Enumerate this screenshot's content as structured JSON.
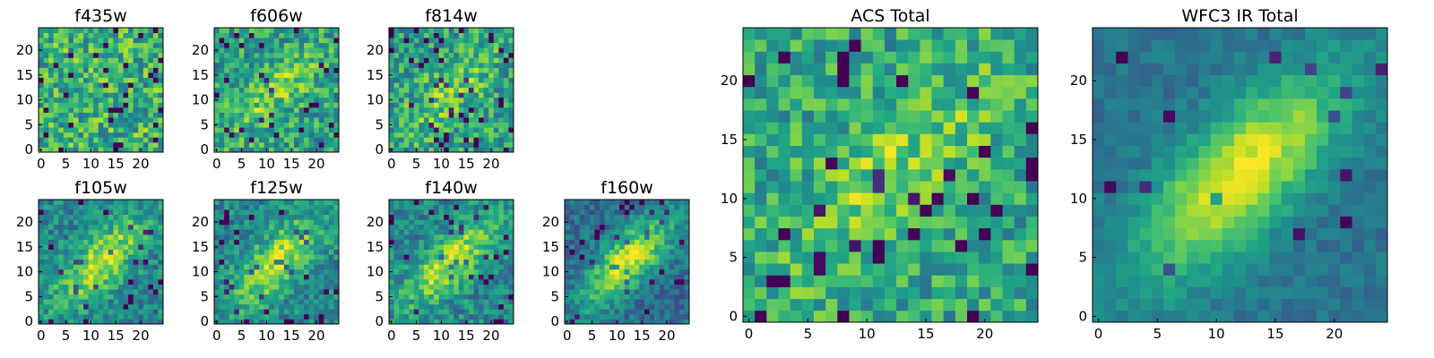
{
  "chart_data": [
    {
      "type": "heatmap",
      "title": "f435w",
      "colormap": "viridis",
      "xlim": [
        0,
        25
      ],
      "ylim": [
        0,
        25
      ],
      "xticks": [
        0,
        5,
        10,
        15,
        20
      ],
      "yticks": [
        0,
        5,
        10,
        15,
        20
      ],
      "pattern": "noise"
    },
    {
      "type": "heatmap",
      "title": "f606w",
      "colormap": "viridis",
      "xlim": [
        0,
        25
      ],
      "ylim": [
        0,
        25
      ],
      "xticks": [
        0,
        5,
        10,
        15,
        20
      ],
      "yticks": [
        0,
        5,
        10,
        15,
        20
      ],
      "pattern": "faint-diagonal"
    },
    {
      "type": "heatmap",
      "title": "f814w",
      "colormap": "viridis",
      "xlim": [
        0,
        25
      ],
      "ylim": [
        0,
        25
      ],
      "xticks": [
        0,
        5,
        10,
        15,
        20
      ],
      "yticks": [
        0,
        5,
        10,
        15,
        20
      ],
      "pattern": "faint-diagonal"
    },
    {
      "type": "heatmap",
      "title": "f105w",
      "colormap": "viridis",
      "xlim": [
        0,
        25
      ],
      "ylim": [
        0,
        25
      ],
      "xticks": [
        0,
        5,
        10,
        15,
        20
      ],
      "yticks": [
        0,
        5,
        10,
        15,
        20
      ],
      "pattern": "diagonal"
    },
    {
      "type": "heatmap",
      "title": "f125w",
      "colormap": "viridis",
      "xlim": [
        0,
        25
      ],
      "ylim": [
        0,
        25
      ],
      "xticks": [
        0,
        5,
        10,
        15,
        20
      ],
      "yticks": [
        0,
        5,
        10,
        15,
        20
      ],
      "pattern": "diagonal"
    },
    {
      "type": "heatmap",
      "title": "f140w",
      "colormap": "viridis",
      "xlim": [
        0,
        25
      ],
      "ylim": [
        0,
        25
      ],
      "xticks": [
        0,
        5,
        10,
        15,
        20
      ],
      "yticks": [
        0,
        5,
        10,
        15,
        20
      ],
      "pattern": "diagonal"
    },
    {
      "type": "heatmap",
      "title": "f160w",
      "colormap": "viridis",
      "xlim": [
        0,
        25
      ],
      "ylim": [
        0,
        25
      ],
      "xticks": [
        0,
        5,
        10,
        15,
        20
      ],
      "yticks": [
        0,
        5,
        10,
        15,
        20
      ],
      "pattern": "strong-diagonal"
    },
    {
      "type": "heatmap",
      "title": "ACS Total",
      "colormap": "viridis",
      "xlim": [
        0,
        25
      ],
      "ylim": [
        0,
        25
      ],
      "xticks": [
        0,
        5,
        10,
        15,
        20
      ],
      "yticks": [
        0,
        5,
        10,
        15,
        20
      ],
      "pattern": "noisy-diagonal"
    },
    {
      "type": "heatmap",
      "title": "WFC3 IR Total",
      "colormap": "viridis",
      "xlim": [
        0,
        25
      ],
      "ylim": [
        0,
        25
      ],
      "xticks": [
        0,
        5,
        10,
        15,
        20
      ],
      "yticks": [
        0,
        5,
        10,
        15,
        20
      ],
      "pattern": "smooth-diagonal"
    }
  ]
}
